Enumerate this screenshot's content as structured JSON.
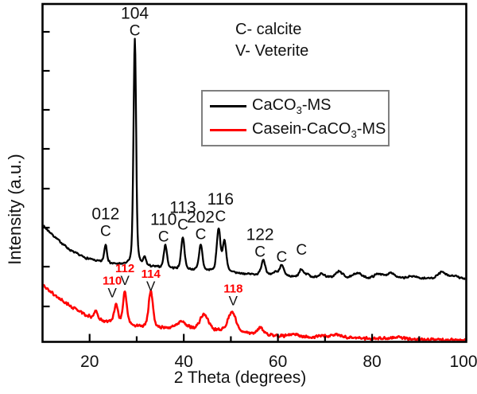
{
  "figure": {
    "background": "#ffffff",
    "frame_color": "#000000",
    "note_lines": [
      "C- calcite",
      "V- Veterite"
    ],
    "legend": {
      "border_color": "#7f7f7f",
      "items": [
        {
          "pre": "CaCO",
          "sub": "3",
          "post": "-MS",
          "color": "#000000"
        },
        {
          "pre": "Casein-CaCO",
          "sub": "3",
          "post": "-MS",
          "color": "#ff0000"
        }
      ]
    }
  },
  "chart_data": {
    "type": "line",
    "title": "",
    "xlabel": "2 Theta (degrees)",
    "ylabel": "Intensity (a.u.)",
    "xlim": [
      10,
      100
    ],
    "ylim": [
      0,
      150
    ],
    "x_major_ticks": [
      20,
      40,
      60,
      80,
      100
    ],
    "x_minor_ticks": [
      30,
      50,
      70,
      90
    ],
    "grid": false,
    "legend_position": "inside-upper-right",
    "phase_key": {
      "C": "calcite",
      "V": "Veterite"
    },
    "series": [
      {
        "name": "CaCO3-MS",
        "color": "#000000",
        "stroke_width": 2.3,
        "noise": 0.5,
        "baseline": [
          [
            10,
            51.8
          ],
          [
            13,
            45.8
          ],
          [
            16,
            40.5
          ],
          [
            19,
            37.3
          ],
          [
            22,
            35.6
          ],
          [
            25,
            34.5
          ],
          [
            29.5,
            33.8
          ],
          [
            34,
            33.1
          ],
          [
            40,
            32
          ],
          [
            46,
            31.3
          ],
          [
            52,
            30.3
          ],
          [
            58,
            29.4
          ],
          [
            65,
            28.5
          ],
          [
            80,
            28.2
          ],
          [
            100,
            28
          ]
        ],
        "peaks": [
          {
            "x": 23.4,
            "h": 8.1,
            "w": 0.35
          },
          {
            "x": 29.6,
            "h": 101,
            "w": 0.33
          },
          {
            "x": 31.7,
            "h": 3.5,
            "w": 0.35
          },
          {
            "x": 36.1,
            "h": 10.2,
            "w": 0.4
          },
          {
            "x": 39.8,
            "h": 14.4,
            "w": 0.42
          },
          {
            "x": 43.6,
            "h": 11.6,
            "w": 0.42
          },
          {
            "x": 47.4,
            "h": 19,
            "w": 0.45
          },
          {
            "x": 48.65,
            "h": 13.5,
            "w": 0.45
          },
          {
            "x": 56.9,
            "h": 7,
            "w": 0.5
          },
          {
            "x": 59.5,
            "h": 1.8,
            "w": 0.5
          },
          {
            "x": 60.8,
            "h": 5.3,
            "w": 0.5
          },
          {
            "x": 65,
            "h": 3.5,
            "w": 0.55
          },
          {
            "x": 66.3,
            "h": 1.5,
            "w": 0.5
          },
          {
            "x": 69.3,
            "h": 1.7,
            "w": 0.8
          },
          {
            "x": 73,
            "h": 2.8,
            "w": 0.9
          },
          {
            "x": 76.9,
            "h": 2.4,
            "w": 0.9
          },
          {
            "x": 81.4,
            "h": 2,
            "w": 1
          },
          {
            "x": 84,
            "h": 2.6,
            "w": 0.9
          },
          {
            "x": 88.6,
            "h": 1,
            "w": 1
          },
          {
            "x": 94.8,
            "h": 2.8,
            "w": 1
          },
          {
            "x": 97.3,
            "h": 1.2,
            "w": 1
          }
        ]
      },
      {
        "name": "Casein-CaCO3-MS",
        "color": "#ff0000",
        "stroke_width": 2.5,
        "noise": 0.75,
        "baseline": [
          [
            10,
            25.3
          ],
          [
            13,
            20
          ],
          [
            16,
            15.8
          ],
          [
            19,
            12
          ],
          [
            22,
            9.6
          ],
          [
            25.5,
            8
          ],
          [
            30,
            6.8
          ],
          [
            35,
            6
          ],
          [
            40,
            5.6
          ],
          [
            46,
            4.9
          ],
          [
            52,
            4.2
          ],
          [
            58,
            2.8
          ],
          [
            65,
            2.1
          ],
          [
            75,
            1.8
          ],
          [
            88,
            1.1
          ],
          [
            100,
            0.7
          ]
        ],
        "peaks": [
          {
            "x": 21.3,
            "h": 3.5,
            "w": 0.45
          },
          {
            "x": 25.6,
            "h": 8.1,
            "w": 0.5
          },
          {
            "x": 27.5,
            "h": 14.4,
            "w": 0.5
          },
          {
            "x": 33,
            "h": 16.2,
            "w": 0.55
          },
          {
            "x": 39.5,
            "h": 3.2,
            "w": 1.3
          },
          {
            "x": 44.3,
            "h": 7.2,
            "w": 1
          },
          {
            "x": 50.2,
            "h": 8.8,
            "w": 1
          },
          {
            "x": 56.2,
            "h": 2.8,
            "w": 0.8
          },
          {
            "x": 63.4,
            "h": 1.2,
            "w": 0.9
          },
          {
            "x": 69.5,
            "h": 0.8,
            "w": 1
          },
          {
            "x": 72.5,
            "h": 1.3,
            "w": 1.2
          },
          {
            "x": 85.5,
            "h": 0.9,
            "w": 1.4
          }
        ]
      }
    ],
    "annotations": [
      {
        "series": 0,
        "text": "012",
        "symbol": "C",
        "x": 23.4,
        "dy": -7
      },
      {
        "series": 0,
        "text": "104",
        "symbol": "C",
        "x": 29.6
      },
      {
        "series": 0,
        "text": "110",
        "symbol": "C",
        "x": 36.1,
        "ax": 35.7
      },
      {
        "series": 0,
        "text": "113",
        "symbol": "C",
        "x": 39.8,
        "dy": -6
      },
      {
        "series": 0,
        "text": "202",
        "symbol": "C",
        "x": 43.6,
        "dy": -3
      },
      {
        "series": 0,
        "text": "116",
        "symbol": "C",
        "x": 47.4,
        "ax": 47.8,
        "dy": -5
      },
      {
        "series": 0,
        "text": "122",
        "symbol": "C",
        "x": 56.9,
        "ax": 56.2
      },
      {
        "series": 0,
        "text": "",
        "symbol": "C",
        "x": 60.8
      },
      {
        "series": 0,
        "text": "",
        "symbol": "C",
        "x": 65,
        "dy": -14
      },
      {
        "series": 1,
        "text": "110",
        "symbol": "V",
        "x": 25.6,
        "ax": 24.8
      },
      {
        "series": 1,
        "text": "112",
        "symbol": "V",
        "x": 27.5
      },
      {
        "series": 1,
        "text": "114",
        "symbol": "V",
        "x": 33,
        "dy": 8
      },
      {
        "series": 1,
        "text": "118",
        "symbol": "V",
        "x": 50.2,
        "ax": 50.5
      }
    ]
  }
}
